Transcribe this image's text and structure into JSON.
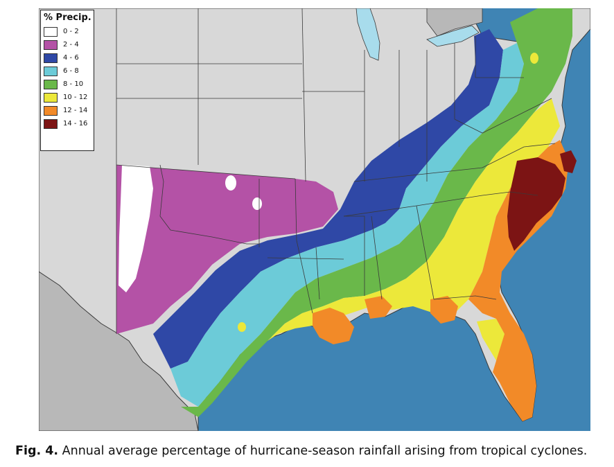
{
  "legend": {
    "title": "% Precip.",
    "entries": [
      {
        "label": "0 - 2",
        "color": "#ffffff"
      },
      {
        "label": "2 - 4",
        "color": "#b452a6"
      },
      {
        "label": "4 - 6",
        "color": "#2f48a6"
      },
      {
        "label": "6 - 8",
        "color": "#6ccbd8"
      },
      {
        "label": "8 - 10",
        "color": "#6ab84a"
      },
      {
        "label": "10 - 12",
        "color": "#ece83a"
      },
      {
        "label": "12 - 14",
        "color": "#f28a28"
      },
      {
        "label": "14 - 16",
        "color": "#7c1414"
      }
    ]
  },
  "map": {
    "ocean_color": "#3f84b4",
    "land_color": "#d8d8d8",
    "border_color": "#3a3a3a"
  },
  "caption": {
    "label": "Fig. 4.",
    "text": "Annual average percentage of hurricane-season rainfall arising from tropical cyclones."
  }
}
